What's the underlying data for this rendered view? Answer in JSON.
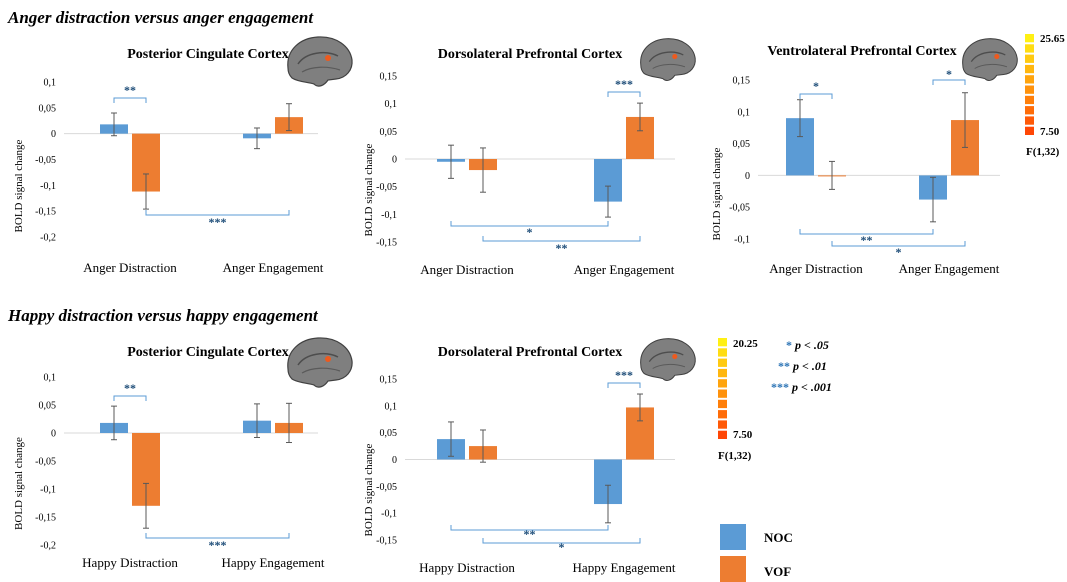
{
  "sections": [
    {
      "title": "Anger distraction versus anger engagement"
    },
    {
      "title": "Happy distraction versus happy engagement"
    }
  ],
  "colors": {
    "noc": "#5b9bd5",
    "vof": "#ed7d31",
    "sig_line": "#5b9bd5",
    "error_bar": "#595959",
    "axis": "#d9d9d9"
  },
  "legend": {
    "items": [
      {
        "label": "NOC",
        "color": "#5b9bd5"
      },
      {
        "label": "VOF",
        "color": "#ed7d31"
      }
    ]
  },
  "significance_key": [
    {
      "stars": "*",
      "label": "p < .05"
    },
    {
      "stars": "**",
      "label": "p < .01"
    },
    {
      "stars": "***",
      "label": "p < .001"
    }
  ],
  "colorbars": [
    {
      "max": "25.65",
      "min": "7.50",
      "stat": "F(1,32)"
    },
    {
      "max": "20.25",
      "min": "7.50",
      "stat": "F(1,32)"
    }
  ],
  "chart_data": [
    {
      "type": "bar",
      "title": "Posterior Cingulate Cortex",
      "ylabel": "BOLD signal change",
      "categories": [
        "Anger Distraction",
        "Anger Engagement"
      ],
      "series": [
        {
          "name": "NOC",
          "values": [
            0.018,
            -0.009
          ],
          "errors": [
            0.022,
            0.02
          ]
        },
        {
          "name": "VOF",
          "values": [
            -0.112,
            0.032
          ],
          "errors": [
            0.034,
            0.026
          ]
        }
      ],
      "ylim": [
        -0.2,
        0.1
      ],
      "yticks": [
        "0,1",
        "0,05",
        "0",
        "-0,05",
        "-0,1",
        "-0,15",
        "-0,2"
      ],
      "significance": [
        {
          "label": "**",
          "between": "NOC vs VOF, Anger Distraction"
        },
        {
          "label": "***",
          "between": "VOF Anger Distraction vs VOF Anger Engagement"
        }
      ]
    },
    {
      "type": "bar",
      "title": "Dorsolateral Prefrontal Cortex",
      "ylabel": "BOLD signal change",
      "categories": [
        "Anger Distraction",
        "Anger Engagement"
      ],
      "series": [
        {
          "name": "NOC",
          "values": [
            -0.005,
            -0.077
          ],
          "errors": [
            0.03,
            0.028
          ]
        },
        {
          "name": "VOF",
          "values": [
            -0.02,
            0.076
          ],
          "errors": [
            0.04,
            0.025
          ]
        }
      ],
      "ylim": [
        -0.15,
        0.15
      ],
      "yticks": [
        "0,15",
        "0,1",
        "0,05",
        "0",
        "-0,05",
        "-0,1",
        "-0,15"
      ],
      "significance": [
        {
          "label": "***",
          "between": "NOC vs VOF, Anger Engagement"
        },
        {
          "label": "*",
          "between": "NOC Anger Distraction vs NOC Anger Engagement"
        },
        {
          "label": "**",
          "between": "VOF Anger Distraction vs VOF Anger Engagement"
        }
      ]
    },
    {
      "type": "bar",
      "title": "Ventrolateral Prefrontal Cortex",
      "ylabel": "BOLD signal change",
      "categories": [
        "Anger Distraction",
        "Anger Engagement"
      ],
      "series": [
        {
          "name": "NOC",
          "values": [
            0.09,
            -0.038
          ],
          "errors": [
            0.029,
            0.035
          ]
        },
        {
          "name": "VOF",
          "values": [
            0.0,
            0.087
          ],
          "errors": [
            0.022,
            0.043
          ]
        }
      ],
      "ylim": [
        -0.1,
        0.15
      ],
      "yticks": [
        "0,15",
        "0,1",
        "0,05",
        "0",
        "-0,05",
        "-0,1"
      ],
      "significance": [
        {
          "label": "*",
          "between": "NOC vs VOF, Anger Distraction"
        },
        {
          "label": "*",
          "between": "NOC vs VOF, Anger Engagement"
        },
        {
          "label": "**",
          "between": "NOC Anger Distraction vs NOC Anger Engagement"
        },
        {
          "label": "*",
          "between": "VOF Anger Distraction vs VOF Anger Engagement"
        }
      ]
    },
    {
      "type": "bar",
      "title": "Posterior Cingulate Cortex",
      "ylabel": "BOLD signal change",
      "categories": [
        "Happy Distraction",
        "Happy Engagement"
      ],
      "series": [
        {
          "name": "NOC",
          "values": [
            0.018,
            0.022
          ],
          "errors": [
            0.03,
            0.03
          ]
        },
        {
          "name": "VOF",
          "values": [
            -0.13,
            0.018
          ],
          "errors": [
            0.04,
            0.035
          ]
        }
      ],
      "ylim": [
        -0.2,
        0.1
      ],
      "yticks": [
        "0,1",
        "0,05",
        "0",
        "-0,05",
        "-0,1",
        "-0,15",
        "-0,2"
      ],
      "significance": [
        {
          "label": "**",
          "between": "NOC vs VOF, Happy Distraction"
        },
        {
          "label": "***",
          "between": "VOF Happy Distraction vs VOF Happy Engagement"
        }
      ]
    },
    {
      "type": "bar",
      "title": "Dorsolateral Prefrontal Cortex",
      "ylabel": "BOLD signal change",
      "categories": [
        "Happy Distraction",
        "Happy Engagement"
      ],
      "series": [
        {
          "name": "NOC",
          "values": [
            0.038,
            -0.083
          ],
          "errors": [
            0.032,
            0.035
          ]
        },
        {
          "name": "VOF",
          "values": [
            0.025,
            0.097
          ],
          "errors": [
            0.03,
            0.025
          ]
        }
      ],
      "ylim": [
        -0.15,
        0.15
      ],
      "yticks": [
        "0,15",
        "0,1",
        "0,05",
        "0",
        "-0,05",
        "-0,1",
        "-0,15"
      ],
      "significance": [
        {
          "label": "***",
          "between": "NOC vs VOF, Happy Engagement"
        },
        {
          "label": "**",
          "between": "NOC Happy Distraction vs NOC Happy Engagement"
        },
        {
          "label": "*",
          "between": "VOF Happy Distraction vs VOF Happy Engagement"
        }
      ]
    }
  ]
}
